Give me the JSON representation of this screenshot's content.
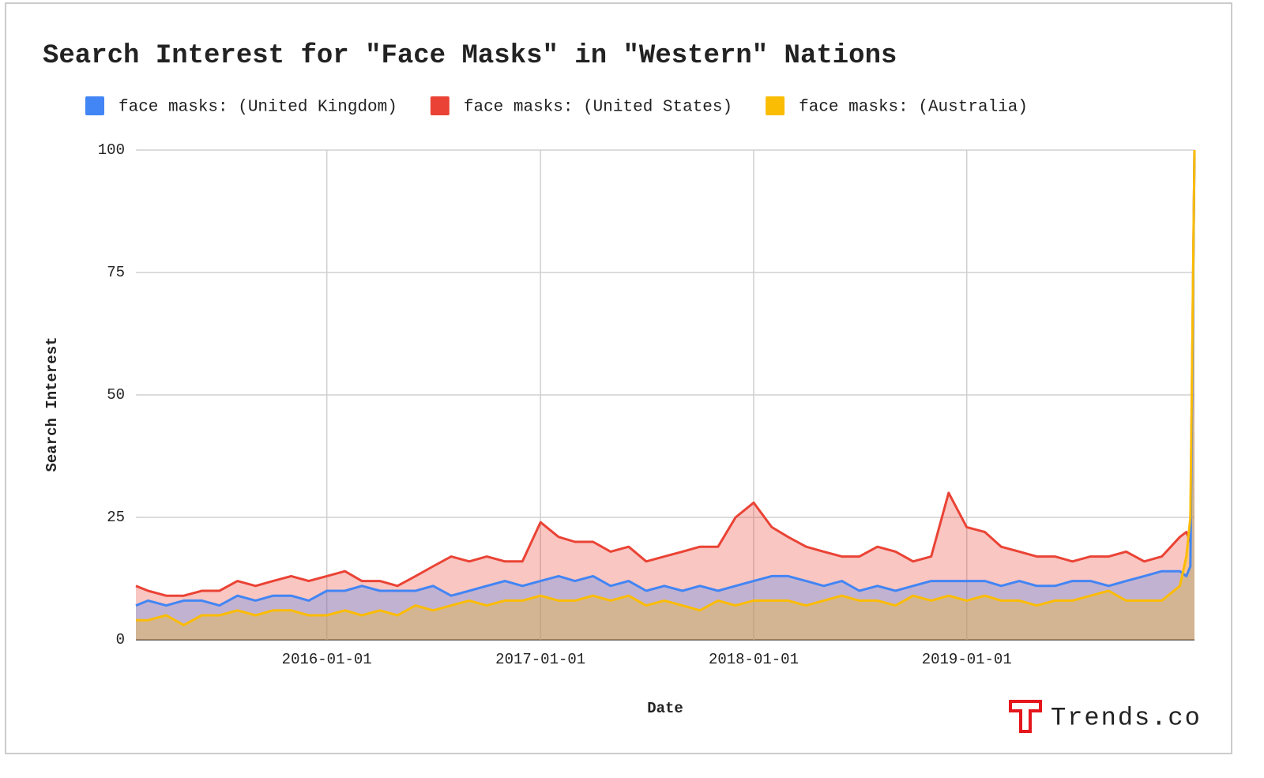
{
  "chart_data": {
    "type": "area",
    "title": "Search Interest for \"Face Masks\" in \"Western\" Nations",
    "x_label": "Date",
    "y_label": "Search Interest",
    "watermark": "Trends.co",
    "x": [
      "2015-02-08",
      "2015-03-01",
      "2015-04-01",
      "2015-05-01",
      "2015-06-01",
      "2015-07-01",
      "2015-08-01",
      "2015-09-01",
      "2015-10-01",
      "2015-11-01",
      "2015-12-01",
      "2016-01-01",
      "2016-02-01",
      "2016-03-01",
      "2016-04-01",
      "2016-05-01",
      "2016-06-01",
      "2016-07-01",
      "2016-08-01",
      "2016-09-01",
      "2016-10-01",
      "2016-11-01",
      "2016-12-01",
      "2017-01-01",
      "2017-02-01",
      "2017-03-01",
      "2017-04-01",
      "2017-05-01",
      "2017-06-01",
      "2017-07-01",
      "2017-08-01",
      "2017-09-01",
      "2017-10-01",
      "2017-11-01",
      "2017-12-01",
      "2018-01-01",
      "2018-02-01",
      "2018-03-01",
      "2018-04-01",
      "2018-05-01",
      "2018-06-01",
      "2018-07-01",
      "2018-08-01",
      "2018-09-01",
      "2018-10-01",
      "2018-11-01",
      "2018-12-01",
      "2019-01-01",
      "2019-02-01",
      "2019-03-01",
      "2019-04-01",
      "2019-05-01",
      "2019-06-01",
      "2019-07-01",
      "2019-08-01",
      "2019-09-01",
      "2019-10-01",
      "2019-11-01",
      "2019-12-01",
      "2020-01-01",
      "2020-01-12",
      "2020-01-19",
      "2020-01-26"
    ],
    "series": [
      {
        "name": "face masks: (United States)",
        "color": "#ea4335",
        "values": [
          11,
          10,
          9,
          9,
          10,
          10,
          12,
          11,
          12,
          13,
          12,
          13,
          14,
          12,
          12,
          11,
          13,
          15,
          17,
          16,
          17,
          16,
          16,
          24,
          21,
          20,
          20,
          18,
          19,
          16,
          17,
          18,
          19,
          19,
          25,
          28,
          23,
          21,
          19,
          18,
          17,
          17,
          19,
          18,
          16,
          17,
          30,
          23,
          22,
          19,
          18,
          17,
          17,
          16,
          17,
          17,
          18,
          16,
          17,
          21,
          22,
          20,
          100
        ]
      },
      {
        "name": "face masks: (United Kingdom)",
        "color": "#4285f4",
        "values": [
          7,
          8,
          7,
          8,
          8,
          7,
          9,
          8,
          9,
          9,
          8,
          10,
          10,
          11,
          10,
          10,
          10,
          11,
          9,
          10,
          11,
          12,
          11,
          12,
          13,
          12,
          13,
          11,
          12,
          10,
          11,
          10,
          11,
          10,
          11,
          12,
          13,
          13,
          12,
          11,
          12,
          10,
          11,
          10,
          11,
          12,
          12,
          12,
          12,
          11,
          12,
          11,
          11,
          12,
          12,
          11,
          12,
          13,
          14,
          14,
          13,
          15,
          100
        ]
      },
      {
        "name": "face masks: (Australia)",
        "color": "#fbbc04",
        "values": [
          4,
          4,
          5,
          3,
          5,
          5,
          6,
          5,
          6,
          6,
          5,
          5,
          6,
          5,
          6,
          5,
          7,
          6,
          7,
          8,
          7,
          8,
          8,
          9,
          8,
          8,
          9,
          8,
          9,
          7,
          8,
          7,
          6,
          8,
          7,
          8,
          8,
          8,
          7,
          8,
          9,
          8,
          8,
          7,
          9,
          8,
          9,
          8,
          9,
          8,
          8,
          7,
          8,
          8,
          9,
          10,
          8,
          8,
          8,
          11,
          17,
          25,
          100
        ]
      }
    ],
    "legend_order": [
      1,
      0,
      2
    ],
    "xlim": [
      "2015-02-08",
      "2020-01-26"
    ],
    "xticks": [
      "2016-01-01",
      "2017-01-01",
      "2018-01-01",
      "2019-01-01"
    ],
    "ylim": [
      0,
      100
    ],
    "yticks": [
      0,
      25,
      50,
      75,
      100
    ],
    "grid": true
  }
}
